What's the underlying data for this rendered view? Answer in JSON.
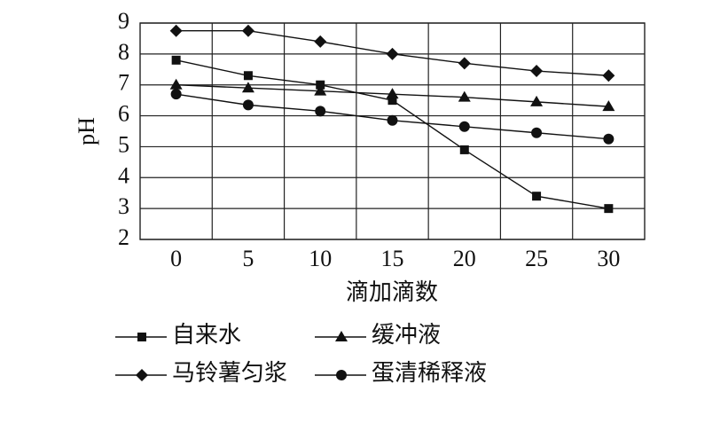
{
  "chart_data": {
    "type": "line",
    "x_label": "滴加滴数",
    "y_label": "pH",
    "categories": [
      "0",
      "5",
      "10",
      "15",
      "20",
      "25",
      "30"
    ],
    "ylim": [
      2,
      9
    ],
    "yticks": [
      2,
      3,
      4,
      5,
      6,
      7,
      8,
      9
    ],
    "grid": true,
    "series": [
      {
        "name": "自来水",
        "color": "#111111",
        "marker": "square",
        "values": [
          7.8,
          7.3,
          7.0,
          6.5,
          4.9,
          3.4,
          3.0
        ]
      },
      {
        "name": "缓冲液",
        "color": "#111111",
        "marker": "triangle",
        "values": [
          7.0,
          6.9,
          6.8,
          6.7,
          6.6,
          6.45,
          6.3
        ]
      },
      {
        "name": "马铃薯匀浆",
        "color": "#111111",
        "marker": "diamond",
        "values": [
          8.75,
          8.75,
          8.4,
          8.0,
          7.7,
          7.45,
          7.3
        ]
      },
      {
        "name": "蛋清稀释液",
        "color": "#111111",
        "marker": "circle",
        "values": [
          6.7,
          6.35,
          6.15,
          5.85,
          5.65,
          5.45,
          5.25
        ]
      }
    ]
  }
}
